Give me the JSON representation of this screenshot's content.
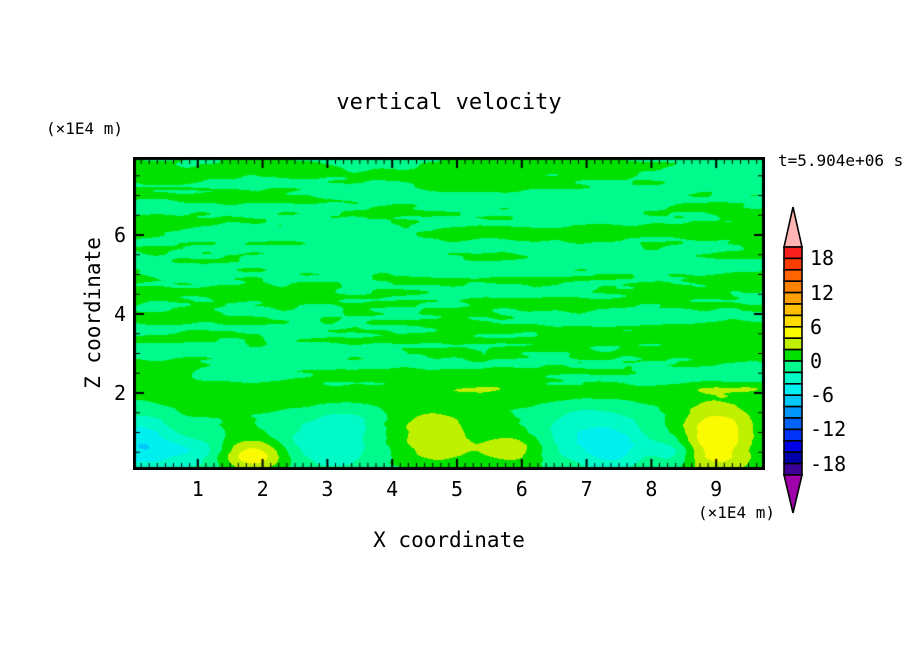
{
  "figure": {
    "title": "vertical velocity",
    "left_axis_unit": "(×1E4 m)",
    "bottom_axis_unit": "(×1E4 m)",
    "time_label": "t=5.904e+06 s",
    "x_axis_title": "X coordinate",
    "z_axis_title": "Z coordinate",
    "background_color": "#ffffff",
    "frame_color": "#000000"
  },
  "chart_data": {
    "type": "heatmap",
    "subtype": "filled-contour",
    "title": "vertical velocity",
    "xlabel": "X coordinate",
    "ylabel": "Z coordinate",
    "x_unit": "(×1E4 m)",
    "z_unit": "(×1E4 m)",
    "time_annotation": "t=5.904e+06 s",
    "x_range": [
      0,
      9.75
    ],
    "z_range": [
      0,
      7.97
    ],
    "x_major_ticks": [
      1,
      2,
      3,
      4,
      5,
      6,
      7,
      8,
      9
    ],
    "x_minor_step": 0.125,
    "z_major_ticks": [
      6,
      4,
      2
    ],
    "z_minor_step": 0.5,
    "grid": false,
    "legend_position": "right-colorbar",
    "levels": {
      "min": -20,
      "max": 20,
      "step": 2
    },
    "colorbar_labels": [
      18,
      12,
      6,
      0,
      -6,
      -12,
      -18
    ],
    "palette_top_to_bottom": [
      "#fa1e1e",
      "#fa3c00",
      "#ff6400",
      "#ff8200",
      "#ffa000",
      "#ffbe00",
      "#ffdc00",
      "#fafa00",
      "#bef000",
      "#00e100",
      "#00fa8c",
      "#00fac8",
      "#00f0f0",
      "#00c8fa",
      "#0096fa",
      "#0064fa",
      "#0032fa",
      "#0000e6",
      "#0000aa",
      "#3c0096"
    ],
    "over_color": "#ffb4b4",
    "under_color": "#a000aa",
    "field_summary": "Above z≈2: thin horizontal alternating streaks of |w|<2 (green / spring-green). Below z≈2: larger anomalies reaching ±6: updraft blobs (chartreuse/yellow) near x≈1.9, 4.7, 5.9, 9.0 and downdraft blobs (aquamarine/cyan) near x≈0.1, 0.9, 3.0, 7.1, 8.35.",
    "texture": {
      "seed": 11,
      "octaves": [
        {
          "fx": 0.55,
          "fz": 3.3,
          "amp": 1.0,
          "ox": 0.0,
          "oz": 0.0
        },
        {
          "fx": 1.3,
          "fz": 6.5,
          "amp": 0.55,
          "ox": 13.7,
          "oz": 7.3
        },
        {
          "fx": 2.6,
          "fz": 9.0,
          "amp": 0.45,
          "ox": 29.1,
          "oz": 17.9
        }
      ],
      "scale": 0.95,
      "bias": -0.05
    },
    "band": {
      "z_top": 2.2,
      "z_bottom": 1.7,
      "streak_damp": 0.35
    },
    "features": [
      {
        "x": 0.1,
        "z": 0.75,
        "sx": 0.5,
        "sz": 0.7,
        "amp": -5.4
      },
      {
        "x": 0.9,
        "z": 0.5,
        "sx": 0.55,
        "sz": 0.45,
        "amp": -3.3
      },
      {
        "x": 1.85,
        "z": 0.45,
        "sx": 0.5,
        "sz": 0.42,
        "amp": 5.7
      },
      {
        "x": 2.95,
        "z": 0.75,
        "sx": 0.75,
        "sz": 0.7,
        "amp": -3.6
      },
      {
        "x": 3.35,
        "z": 1.3,
        "sx": 0.45,
        "sz": 0.4,
        "amp": -1.6
      },
      {
        "x": 4.65,
        "z": 0.9,
        "sx": 0.6,
        "sz": 0.8,
        "amp": 3.6
      },
      {
        "x": 5.85,
        "z": 0.6,
        "sx": 0.5,
        "sz": 0.5,
        "amp": 3.3
      },
      {
        "x": 7.1,
        "z": 0.9,
        "sx": 0.85,
        "sz": 0.85,
        "amp": -4.0
      },
      {
        "x": 7.45,
        "z": 0.55,
        "sx": 0.4,
        "sz": 0.45,
        "amp": -2.4
      },
      {
        "x": 8.35,
        "z": 0.5,
        "sx": 0.32,
        "sz": 0.38,
        "amp": -3.0
      },
      {
        "x": 9.0,
        "z": 0.85,
        "sx": 0.55,
        "sz": 0.9,
        "amp": 5.9
      },
      {
        "x": 5.0,
        "z": 1.95,
        "sx": 6.5,
        "sz": 0.28,
        "amp": 1.2
      }
    ]
  }
}
